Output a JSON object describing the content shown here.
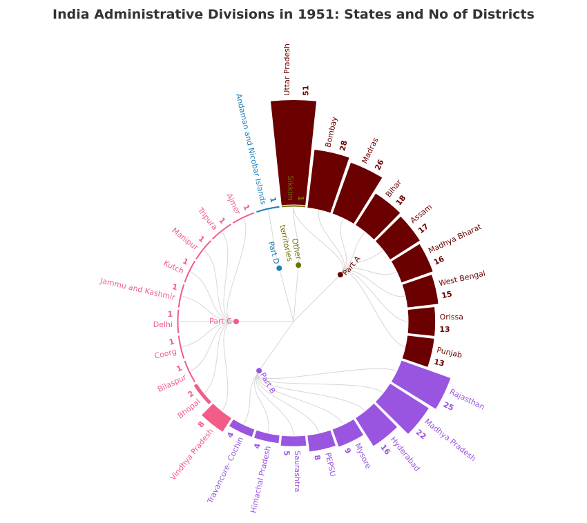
{
  "title": "India Administrative Divisions in 1951: States and No of Districts",
  "colors": {
    "Part A": "#6b0000",
    "Part B": "#9a55e0",
    "Part C": "#f25c88",
    "Part D": "#1f7fb8",
    "Other territories": "#707000",
    "link": "#d6d6d6"
  },
  "chart_data": {
    "type": "radial-bar-dendrogram",
    "title": "India Administrative Divisions in 1951: States and No of Districts",
    "groups": [
      "Part A",
      "Part B",
      "Part C",
      "Part D",
      "Other territories"
    ],
    "items": [
      {
        "name": "Uttar Pradesh",
        "value": 51,
        "group": "Part A"
      },
      {
        "name": "Bombay",
        "value": 28,
        "group": "Part A"
      },
      {
        "name": "Madras",
        "value": 26,
        "group": "Part A"
      },
      {
        "name": "Bihar",
        "value": 18,
        "group": "Part A"
      },
      {
        "name": "Assam",
        "value": 17,
        "group": "Part A"
      },
      {
        "name": "Madhya Bharat",
        "value": 16,
        "group": "Part A"
      },
      {
        "name": "West Bengal",
        "value": 15,
        "group": "Part A"
      },
      {
        "name": "Orissa",
        "value": 13,
        "group": "Part A"
      },
      {
        "name": "Punjab",
        "value": 13,
        "group": "Part A"
      },
      {
        "name": "Rajasthan",
        "value": 25,
        "group": "Part B"
      },
      {
        "name": "Madhya Pradesh",
        "value": 22,
        "group": "Part B"
      },
      {
        "name": "Hyderabad",
        "value": 16,
        "group": "Part B"
      },
      {
        "name": "Mysore",
        "value": 9,
        "group": "Part B"
      },
      {
        "name": "PEPSU",
        "value": 8,
        "group": "Part B"
      },
      {
        "name": "Saurashtra",
        "value": 5,
        "group": "Part B"
      },
      {
        "name": "Himachal Pradesh",
        "value": 4,
        "group": "Part B"
      },
      {
        "name": "Travancore- Cochin",
        "value": 4,
        "group": "Part B"
      },
      {
        "name": "Vindhya Pradesh",
        "value": 8,
        "group": "Part C"
      },
      {
        "name": "Bhopal",
        "value": 2,
        "group": "Part C"
      },
      {
        "name": "Bilaspur",
        "value": 1,
        "group": "Part C"
      },
      {
        "name": "Coorg",
        "value": 1,
        "group": "Part C"
      },
      {
        "name": "Delhi",
        "value": 1,
        "group": "Part C"
      },
      {
        "name": "Jammu and Kashmir",
        "value": 1,
        "group": "Part C"
      },
      {
        "name": "Kutch",
        "value": 1,
        "group": "Part C"
      },
      {
        "name": "Manipur",
        "value": 1,
        "group": "Part C"
      },
      {
        "name": "Tripura",
        "value": 1,
        "group": "Part C"
      },
      {
        "name": "Ajmer",
        "value": 1,
        "group": "Part C"
      },
      {
        "name": "Andaman and Nicobar Islands",
        "value": 1,
        "group": "Part D"
      },
      {
        "name": "Sikkim",
        "value": 1,
        "group": "Other territories"
      }
    ]
  }
}
